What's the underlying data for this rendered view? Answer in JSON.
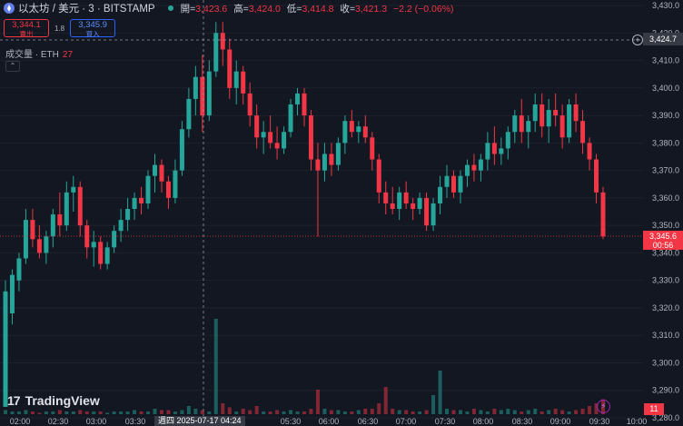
{
  "header": {
    "title": "以太坊 / 美元 · 3 · BITSTAMP",
    "open_label": "開=",
    "open": "3,423.6",
    "high_label": "高=",
    "high": "3,424.0",
    "low_label": "低=",
    "low": "3,414.8",
    "close_label": "收=",
    "close": "3,421.3",
    "change": "−2.2 (−0.06%)"
  },
  "trade": {
    "sell_price": "3,344.1",
    "sell_label": "賣出",
    "spread": "1.8",
    "buy_price": "3,345.9",
    "buy_label": "買入"
  },
  "volume": {
    "label": "成交量 · ETH",
    "value": "27"
  },
  "price_axis": {
    "labels": [
      "3,430.0",
      "3,420.0",
      "3,410.0",
      "3,400.0",
      "3,390.0",
      "3,380.0",
      "3,370.0",
      "3,360.0",
      "3,350.0",
      "3,340.0",
      "3,330.0",
      "3,320.0",
      "3,310.0",
      "3,300.0",
      "3,290.0",
      "3,280.0"
    ],
    "current_price": "3,345.6",
    "countdown": "00:56",
    "crosshair_price": "3,424.7",
    "volume_tag": "11"
  },
  "time_axis": {
    "labels": [
      "02:00",
      "02:30",
      "03:00",
      "03:30",
      "05:30",
      "06:00",
      "06:30",
      "07:00",
      "07:30",
      "08:00",
      "08:30",
      "09:00",
      "09:30",
      "10:00"
    ],
    "crosshair_date": "週四 2025-07-17 04:24"
  },
  "brand": {
    "name": "TradingView"
  },
  "colors": {
    "up": "#26a69a",
    "down": "#f23645",
    "background": "#131722"
  },
  "chart_data": {
    "type": "candlestick",
    "ylim": [
      3280,
      3432
    ],
    "series": [
      {
        "o": 3284,
        "h": 3330,
        "l": 3284,
        "c": 3326
      },
      {
        "o": 3318,
        "h": 3334,
        "l": 3314,
        "c": 3332
      },
      {
        "o": 3330,
        "h": 3340,
        "l": 3326,
        "c": 3338
      },
      {
        "o": 3338,
        "h": 3356,
        "l": 3336,
        "c": 3352
      },
      {
        "o": 3352,
        "h": 3356,
        "l": 3342,
        "c": 3345
      },
      {
        "o": 3345,
        "h": 3350,
        "l": 3338,
        "c": 3340
      },
      {
        "o": 3340,
        "h": 3348,
        "l": 3336,
        "c": 3346
      },
      {
        "o": 3346,
        "h": 3356,
        "l": 3342,
        "c": 3354
      },
      {
        "o": 3354,
        "h": 3362,
        "l": 3346,
        "c": 3350
      },
      {
        "o": 3350,
        "h": 3366,
        "l": 3348,
        "c": 3362
      },
      {
        "o": 3362,
        "h": 3368,
        "l": 3355,
        "c": 3364
      },
      {
        "o": 3364,
        "h": 3366,
        "l": 3346,
        "c": 3350
      },
      {
        "o": 3350,
        "h": 3352,
        "l": 3338,
        "c": 3342
      },
      {
        "o": 3342,
        "h": 3348,
        "l": 3335,
        "c": 3344
      },
      {
        "o": 3344,
        "h": 3346,
        "l": 3334,
        "c": 3336
      },
      {
        "o": 3336,
        "h": 3344,
        "l": 3334,
        "c": 3342
      },
      {
        "o": 3342,
        "h": 3350,
        "l": 3340,
        "c": 3348
      },
      {
        "o": 3348,
        "h": 3356,
        "l": 3344,
        "c": 3352
      },
      {
        "o": 3352,
        "h": 3360,
        "l": 3348,
        "c": 3356
      },
      {
        "o": 3356,
        "h": 3362,
        "l": 3352,
        "c": 3360
      },
      {
        "o": 3360,
        "h": 3364,
        "l": 3354,
        "c": 3358
      },
      {
        "o": 3358,
        "h": 3370,
        "l": 3356,
        "c": 3368
      },
      {
        "o": 3368,
        "h": 3376,
        "l": 3362,
        "c": 3372
      },
      {
        "o": 3372,
        "h": 3374,
        "l": 3362,
        "c": 3366
      },
      {
        "o": 3366,
        "h": 3368,
        "l": 3356,
        "c": 3360
      },
      {
        "o": 3360,
        "h": 3374,
        "l": 3358,
        "c": 3370
      },
      {
        "o": 3370,
        "h": 3388,
        "l": 3368,
        "c": 3385
      },
      {
        "o": 3385,
        "h": 3400,
        "l": 3382,
        "c": 3396
      },
      {
        "o": 3396,
        "h": 3408,
        "l": 3390,
        "c": 3404
      },
      {
        "o": 3404,
        "h": 3412,
        "l": 3384,
        "c": 3390
      },
      {
        "o": 3390,
        "h": 3410,
        "l": 3388,
        "c": 3406
      },
      {
        "o": 3406,
        "h": 3424,
        "l": 3404,
        "c": 3420
      },
      {
        "o": 3420,
        "h": 3424,
        "l": 3408,
        "c": 3414
      },
      {
        "o": 3414,
        "h": 3418,
        "l": 3396,
        "c": 3400
      },
      {
        "o": 3400,
        "h": 3410,
        "l": 3394,
        "c": 3406
      },
      {
        "o": 3406,
        "h": 3408,
        "l": 3394,
        "c": 3398
      },
      {
        "o": 3398,
        "h": 3402,
        "l": 3386,
        "c": 3390
      },
      {
        "o": 3390,
        "h": 3394,
        "l": 3378,
        "c": 3382
      },
      {
        "o": 3382,
        "h": 3388,
        "l": 3376,
        "c": 3384
      },
      {
        "o": 3384,
        "h": 3390,
        "l": 3378,
        "c": 3380
      },
      {
        "o": 3380,
        "h": 3386,
        "l": 3374,
        "c": 3378
      },
      {
        "o": 3378,
        "h": 3386,
        "l": 3376,
        "c": 3384
      },
      {
        "o": 3384,
        "h": 3396,
        "l": 3382,
        "c": 3394
      },
      {
        "o": 3394,
        "h": 3400,
        "l": 3390,
        "c": 3398
      },
      {
        "o": 3398,
        "h": 3400,
        "l": 3386,
        "c": 3390
      },
      {
        "o": 3390,
        "h": 3392,
        "l": 3370,
        "c": 3374
      },
      {
        "o": 3374,
        "h": 3380,
        "l": 3346,
        "c": 3370
      },
      {
        "o": 3370,
        "h": 3380,
        "l": 3366,
        "c": 3376
      },
      {
        "o": 3376,
        "h": 3380,
        "l": 3368,
        "c": 3372
      },
      {
        "o": 3372,
        "h": 3382,
        "l": 3370,
        "c": 3380
      },
      {
        "o": 3380,
        "h": 3390,
        "l": 3376,
        "c": 3388
      },
      {
        "o": 3388,
        "h": 3392,
        "l": 3382,
        "c": 3384
      },
      {
        "o": 3384,
        "h": 3388,
        "l": 3380,
        "c": 3386
      },
      {
        "o": 3386,
        "h": 3390,
        "l": 3380,
        "c": 3382
      },
      {
        "o": 3382,
        "h": 3384,
        "l": 3370,
        "c": 3374
      },
      {
        "o": 3374,
        "h": 3376,
        "l": 3358,
        "c": 3362
      },
      {
        "o": 3362,
        "h": 3366,
        "l": 3354,
        "c": 3358
      },
      {
        "o": 3358,
        "h": 3364,
        "l": 3354,
        "c": 3356
      },
      {
        "o": 3356,
        "h": 3364,
        "l": 3352,
        "c": 3362
      },
      {
        "o": 3362,
        "h": 3366,
        "l": 3356,
        "c": 3358
      },
      {
        "o": 3358,
        "h": 3360,
        "l": 3352,
        "c": 3356
      },
      {
        "o": 3356,
        "h": 3362,
        "l": 3354,
        "c": 3360
      },
      {
        "o": 3360,
        "h": 3362,
        "l": 3348,
        "c": 3350
      },
      {
        "o": 3350,
        "h": 3360,
        "l": 3348,
        "c": 3358
      },
      {
        "o": 3358,
        "h": 3368,
        "l": 3354,
        "c": 3364
      },
      {
        "o": 3364,
        "h": 3372,
        "l": 3360,
        "c": 3368
      },
      {
        "o": 3368,
        "h": 3370,
        "l": 3360,
        "c": 3362
      },
      {
        "o": 3362,
        "h": 3370,
        "l": 3358,
        "c": 3368
      },
      {
        "o": 3368,
        "h": 3374,
        "l": 3364,
        "c": 3372
      },
      {
        "o": 3372,
        "h": 3376,
        "l": 3366,
        "c": 3370
      },
      {
        "o": 3370,
        "h": 3376,
        "l": 3366,
        "c": 3374
      },
      {
        "o": 3374,
        "h": 3384,
        "l": 3370,
        "c": 3380
      },
      {
        "o": 3380,
        "h": 3386,
        "l": 3372,
        "c": 3376
      },
      {
        "o": 3376,
        "h": 3382,
        "l": 3372,
        "c": 3378
      },
      {
        "o": 3378,
        "h": 3386,
        "l": 3374,
        "c": 3384
      },
      {
        "o": 3384,
        "h": 3392,
        "l": 3380,
        "c": 3390
      },
      {
        "o": 3390,
        "h": 3396,
        "l": 3380,
        "c": 3384
      },
      {
        "o": 3384,
        "h": 3390,
        "l": 3378,
        "c": 3388
      },
      {
        "o": 3388,
        "h": 3398,
        "l": 3384,
        "c": 3394
      },
      {
        "o": 3394,
        "h": 3398,
        "l": 3382,
        "c": 3386
      },
      {
        "o": 3386,
        "h": 3396,
        "l": 3380,
        "c": 3392
      },
      {
        "o": 3392,
        "h": 3398,
        "l": 3386,
        "c": 3390
      },
      {
        "o": 3390,
        "h": 3394,
        "l": 3378,
        "c": 3382
      },
      {
        "o": 3382,
        "h": 3396,
        "l": 3380,
        "c": 3394
      },
      {
        "o": 3394,
        "h": 3398,
        "l": 3384,
        "c": 3388
      },
      {
        "o": 3388,
        "h": 3392,
        "l": 3376,
        "c": 3380
      },
      {
        "o": 3380,
        "h": 3382,
        "l": 3370,
        "c": 3374
      },
      {
        "o": 3374,
        "h": 3376,
        "l": 3358,
        "c": 3362
      },
      {
        "o": 3362,
        "h": 3364,
        "l": 3345,
        "c": 3346
      }
    ],
    "volume": [
      3,
      2,
      2,
      3,
      2,
      1,
      2,
      2,
      3,
      2,
      2,
      3,
      2,
      2,
      2,
      1,
      2,
      2,
      2,
      3,
      2,
      2,
      4,
      3,
      3,
      2,
      3,
      6,
      4,
      3,
      2,
      70,
      8,
      5,
      2,
      4,
      3,
      6,
      2,
      2,
      3,
      2,
      3,
      2,
      2,
      4,
      18,
      4,
      3,
      3,
      2,
      2,
      3,
      4,
      4,
      8,
      20,
      4,
      3,
      3,
      2,
      2,
      3,
      14,
      32,
      4,
      3,
      3,
      2,
      4,
      3,
      2,
      4,
      3,
      4,
      3,
      2,
      3,
      4,
      2,
      3,
      4,
      3,
      2,
      3,
      4,
      6,
      8,
      11
    ]
  }
}
